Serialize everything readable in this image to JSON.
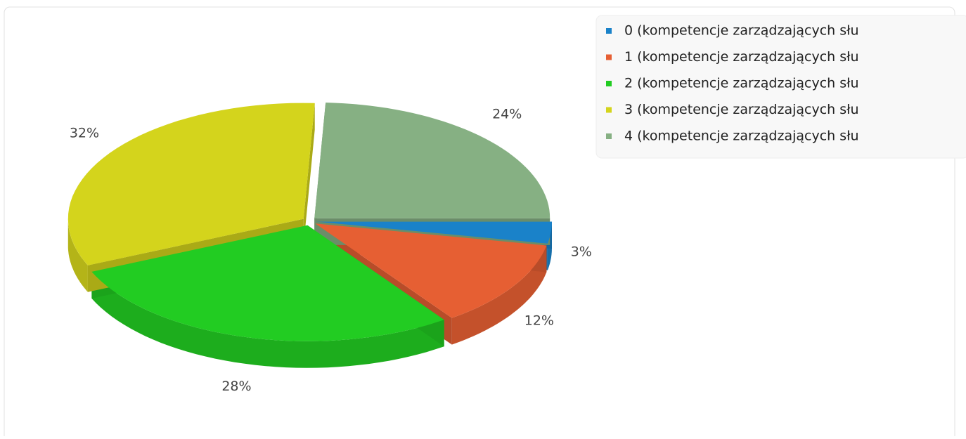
{
  "chart_data": {
    "type": "pie",
    "categories": [
      "0 (kompetencje zarządzających słu",
      "1 (kompetencje zarządzających słu",
      "2 (kompetencje zarządzających słu",
      "3 (kompetencje zarządzających słu",
      "4 (kompetencje zarządzających słu"
    ],
    "values": [
      3,
      12,
      28,
      32,
      24
    ],
    "value_labels": [
      "3%",
      "12%",
      "28%",
      "32%",
      "24%"
    ],
    "colors": [
      "#1a82c9",
      "#e65f33",
      "#22cc22",
      "#d4d41c",
      "#86b083"
    ],
    "legend": "top-right"
  }
}
